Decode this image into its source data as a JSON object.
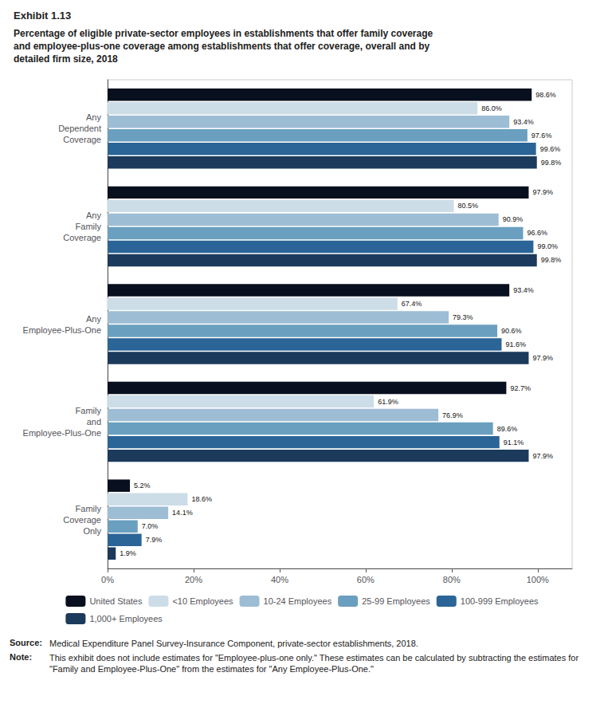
{
  "chart_data": {
    "type": "bar",
    "orientation": "horizontal",
    "title": "Exhibit 1.13",
    "subtitle": "Percentage of eligible private-sector employees in establishments that offer family coverage\nand employee-plus-one coverage among establishments that offer coverage, overall and by\ndetailed firm size, 2018",
    "categories": [
      "Any\nDependent\nCoverage",
      "Any\nFamily\nCoverage",
      "Any\nEmployee-Plus-One",
      "Family\nand\nEmployee-Plus-One",
      "Family\nCoverage\nOnly"
    ],
    "series": [
      {
        "name": "United States",
        "color": "#080f1e",
        "values": [
          98.6,
          97.9,
          93.4,
          92.7,
          5.2
        ],
        "value_labels": [
          "98.6%",
          "97.9%",
          "93.4%",
          "92.7%",
          "5.2%"
        ]
      },
      {
        "name": "<10 Employees",
        "color": "#ccdde8",
        "values": [
          86.0,
          80.5,
          67.4,
          61.9,
          18.6
        ],
        "value_labels": [
          "86.0%",
          "80.5%",
          "67.4%",
          "61.9%",
          "18.6%"
        ]
      },
      {
        "name": "10-24 Employees",
        "color": "#9dbdd4",
        "values": [
          93.4,
          90.9,
          79.3,
          76.9,
          14.1
        ],
        "value_labels": [
          "93.4%",
          "90.9%",
          "79.3%",
          "76.9%",
          "14.1%"
        ]
      },
      {
        "name": "25-99 Employees",
        "color": "#6a9fc0",
        "values": [
          97.6,
          96.6,
          90.6,
          89.6,
          7.0
        ],
        "value_labels": [
          "97.6%",
          "96.6%",
          "90.6%",
          "89.6%",
          "7.0%"
        ]
      },
      {
        "name": "100-999 Employees",
        "color": "#2b6496",
        "values": [
          99.6,
          99.0,
          91.6,
          91.1,
          7.9
        ],
        "value_labels": [
          "99.6%",
          "99.0%",
          "91.6%",
          "91.1%",
          "7.9%"
        ]
      },
      {
        "name": "1,000+ Employees",
        "color": "#1b3a5c",
        "values": [
          99.8,
          99.8,
          97.9,
          97.9,
          1.9
        ],
        "value_labels": [
          "99.8%",
          "99.8%",
          "97.9%",
          "97.9%",
          "1.9%"
        ]
      }
    ],
    "xlim": [
      0,
      108
    ],
    "xticks": [
      {
        "value": 0,
        "label": "0%"
      },
      {
        "value": 20,
        "label": "20%"
      },
      {
        "value": 40,
        "label": "40%"
      },
      {
        "value": 60,
        "label": "60%"
      },
      {
        "value": 80,
        "label": "80%"
      },
      {
        "value": 100,
        "label": "100%"
      }
    ],
    "grid": false,
    "legend": "bottom",
    "data_labels": true,
    "annotations": [
      {
        "label": "Source:",
        "text": "Medical Expenditure Panel Survey-Insurance Component, private-sector establishments, 2018."
      },
      {
        "label": "Note:",
        "text": "This exhibit does not include estimates for \"Employee-plus-one only.\" These estimates can be calculated by subtracting the estimates for \"Family and Employee-Plus-One\" from the estimates for \"Any Employee-Plus-One.\""
      }
    ]
  }
}
